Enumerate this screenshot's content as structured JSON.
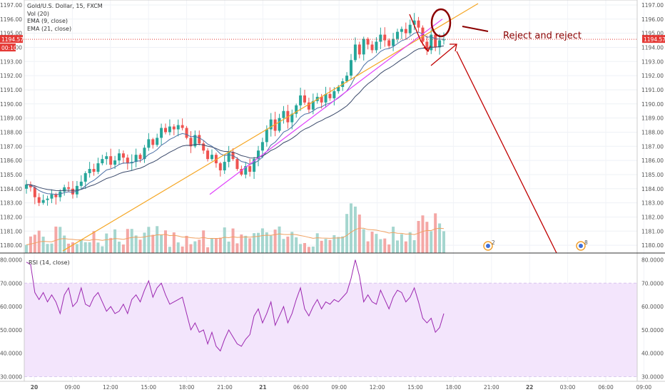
{
  "legend": {
    "title": "Gold/U.S. Dollar, 15, FXCM",
    "vol": "Vol (20)",
    "ema9": "EMA (9, close)",
    "ema21": "EMA (21, close)"
  },
  "price_tag": {
    "price": "1194.57",
    "countdown": "00:10"
  },
  "annotation": "Reject and reject",
  "event_badges": [
    "2",
    "8"
  ],
  "rsi_label": "RSI (14, close)",
  "colors": {
    "up": "#26a69a",
    "down": "#ef5350",
    "ema9": "#4a6fa5",
    "ema21": "#3b4a6b",
    "trend_orange": "#f5a623",
    "trend_magenta": "#e040fb",
    "annot": "#c00000",
    "rsi_line": "#9c27b0",
    "rsi_band": "#f3e5fc"
  },
  "chart_data": [
    {
      "type": "candlestick",
      "title": "Gold/U.S. Dollar, 15, FXCM",
      "ylim": [
        1179.3,
        1197.2
      ],
      "y_ticks": [
        "1197.00",
        "1196.00",
        "1195.00",
        "1194.00",
        "1193.00",
        "1192.00",
        "1191.00",
        "1190.00",
        "1189.00",
        "1188.00",
        "1187.00",
        "1186.00",
        "1185.00",
        "1184.00",
        "1183.00",
        "1182.00",
        "1181.00",
        "1180.00"
      ],
      "x_ticks": [
        "20",
        "09:00",
        "12:00",
        "15:00",
        "18:00",
        "21:00",
        "21",
        "06:00",
        "09:00",
        "12:00",
        "15:00",
        "18:00",
        "21:00",
        "22",
        "03:00",
        "06:00",
        "09:00"
      ],
      "close": [
        1184.3,
        1184.1,
        1183.4,
        1183.0,
        1183.2,
        1183.3,
        1183.6,
        1183.4,
        1183.8,
        1184.1,
        1184.0,
        1183.6,
        1184.2,
        1184.5,
        1185.1,
        1185.4,
        1185.2,
        1185.8,
        1186.1,
        1186.3,
        1185.7,
        1186.0,
        1186.5,
        1186.2,
        1185.8,
        1185.9,
        1186.4,
        1186.1,
        1186.9,
        1187.5,
        1187.1,
        1187.6,
        1188.3,
        1188.0,
        1188.4,
        1188.2,
        1188.5,
        1188.3,
        1187.6,
        1187.0,
        1187.8,
        1187.2,
        1186.7,
        1186.1,
        1186.4,
        1185.8,
        1185.3,
        1185.9,
        1186.6,
        1186.1,
        1185.4,
        1185.0,
        1185.6,
        1185.2,
        1186.1,
        1186.7,
        1187.3,
        1188.2,
        1188.9,
        1188.1,
        1189.0,
        1189.5,
        1188.7,
        1189.3,
        1189.9,
        1190.6,
        1190.1,
        1189.6,
        1190.2,
        1190.5,
        1190.1,
        1190.7,
        1190.4,
        1190.9,
        1191.2,
        1191.6,
        1192.0,
        1193.1,
        1194.2,
        1193.5,
        1194.6,
        1194.2,
        1193.8,
        1194.4,
        1194.9,
        1194.5,
        1194.1,
        1194.6,
        1195.1,
        1195.3,
        1195.0,
        1195.6,
        1195.9,
        1195.4,
        1194.4,
        1193.8,
        1194.9,
        1194.0,
        1194.5,
        1194.57
      ],
      "ema9_end": 1194.3,
      "ema21_end": 1194.0,
      "volume_ma_period": 20,
      "annotations": [
        "Reject and reject"
      ]
    },
    {
      "type": "line",
      "title": "RSI (14, close)",
      "ylim": [
        28,
        82
      ],
      "y_ticks": [
        "80.0000",
        "70.0000",
        "60.0000",
        "50.0000",
        "40.0000",
        "30.0000"
      ],
      "band": [
        30,
        70
      ],
      "values": [
        79,
        78,
        66,
        63,
        66,
        62,
        65,
        62,
        57,
        65,
        68,
        60,
        62,
        68,
        61,
        60,
        64,
        66,
        62,
        58,
        60,
        57,
        58,
        61,
        57,
        63,
        65,
        62,
        67,
        71,
        64,
        68,
        70,
        65,
        61,
        62,
        63,
        64,
        57,
        50,
        53,
        49,
        50,
        44,
        49,
        43,
        41,
        46,
        50,
        47,
        44,
        43,
        46,
        48,
        56,
        59,
        53,
        57,
        62,
        52,
        56,
        60,
        53,
        57,
        63,
        68,
        59,
        56,
        60,
        63,
        59,
        62,
        61,
        63,
        62,
        64,
        66,
        72,
        80,
        73,
        62,
        65,
        62,
        61,
        67,
        63,
        59,
        64,
        67,
        66,
        62,
        64,
        68,
        62,
        55,
        53,
        55,
        49,
        51,
        57
      ]
    }
  ]
}
